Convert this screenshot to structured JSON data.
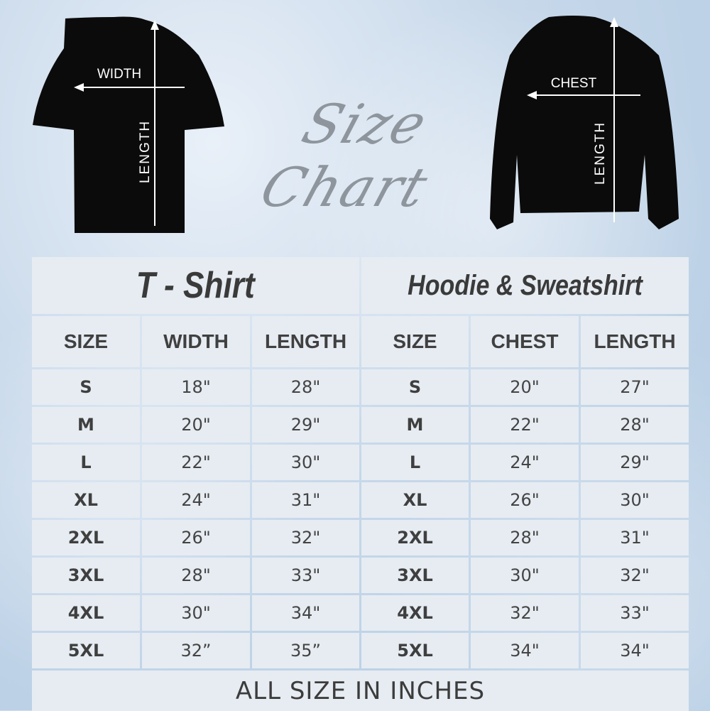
{
  "title": "Size Chart",
  "tshirt_image": {
    "width_label": "WIDTH",
    "length_label": "LENGTH"
  },
  "sweatshirt_image": {
    "chest_label": "CHEST",
    "length_label": "LENGTH"
  },
  "tshirt": {
    "heading": "T - Shirt",
    "columns": [
      "SIZE",
      "WIDTH",
      "LENGTH"
    ],
    "rows": [
      [
        "S",
        "18\"",
        "28\""
      ],
      [
        "M",
        "20\"",
        "29\""
      ],
      [
        "L",
        "22\"",
        "30\""
      ],
      [
        "XL",
        "24\"",
        "31\""
      ],
      [
        "2XL",
        "26\"",
        "32\""
      ],
      [
        "3XL",
        "28\"",
        "33\""
      ],
      [
        "4XL",
        "30\"",
        "34\""
      ],
      [
        "5XL",
        "32”",
        "35”"
      ]
    ]
  },
  "hoodie": {
    "heading": "Hoodie & Sweatshirt",
    "columns": [
      "SIZE",
      "CHEST",
      "LENGTH"
    ],
    "rows": [
      [
        "S",
        "20\"",
        "27\""
      ],
      [
        "M",
        "22\"",
        "28\""
      ],
      [
        "L",
        "24\"",
        "29\""
      ],
      [
        "XL",
        "26\"",
        "30\""
      ],
      [
        "2XL",
        "28\"",
        "31\""
      ],
      [
        "3XL",
        "30\"",
        "32\""
      ],
      [
        "4XL",
        "32\"",
        "33\""
      ],
      [
        "5XL",
        "34\"",
        "34\""
      ]
    ]
  },
  "footer": "ALL SIZE IN INCHES"
}
